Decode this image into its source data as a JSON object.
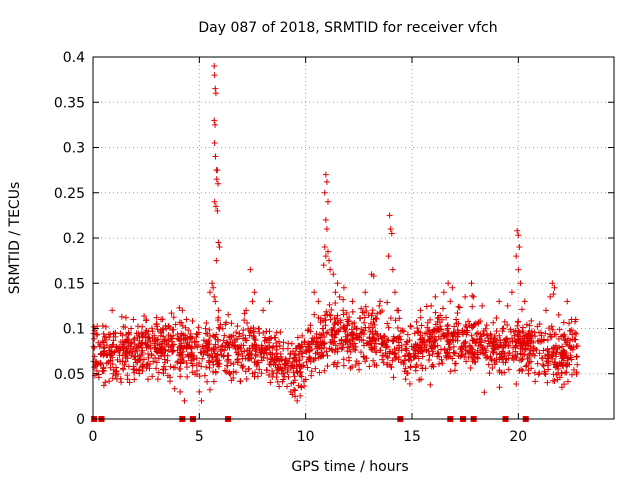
{
  "chart_data": {
    "type": "scatter",
    "title": "Day 087 of 2018, SRMTID for receiver vfch",
    "xlabel": "GPS time / hours",
    "ylabel": "SRMTID / TECUs",
    "xlim": [
      0,
      24.5
    ],
    "ylim": [
      0,
      0.4
    ],
    "x_ticks": [
      0,
      5,
      10,
      15,
      20
    ],
    "x_tick_labels": [
      "0",
      "5",
      "10",
      "15",
      "20"
    ],
    "y_ticks": [
      0,
      0.05,
      0.1,
      0.15,
      0.2,
      0.25,
      0.3,
      0.35,
      0.4
    ],
    "y_tick_labels": [
      "0",
      "0.05",
      "0.1",
      "0.15",
      "0.2",
      "0.25",
      "0.3",
      "0.35",
      "0.4"
    ],
    "grid": true,
    "marker": "+",
    "color": "#e00000",
    "series": [
      {
        "name": "SRMTID",
        "baseline_profile_x": [
          0,
          1,
          2,
          3,
          4,
          5,
          5.5,
          6,
          7,
          8,
          9,
          9.5,
          10,
          11,
          12,
          13,
          14,
          15,
          16,
          17,
          18,
          19,
          20,
          21,
          22,
          22.8
        ],
        "baseline_profile_y": [
          0.07,
          0.075,
          0.078,
          0.08,
          0.082,
          0.075,
          0.07,
          0.08,
          0.075,
          0.078,
          0.065,
          0.055,
          0.07,
          0.095,
          0.09,
          0.085,
          0.08,
          0.075,
          0.085,
          0.09,
          0.085,
          0.075,
          0.08,
          0.075,
          0.07,
          0.08
        ],
        "spread": 0.025,
        "points": [
          [
            0.2,
            0.093
          ],
          [
            0.9,
            0.12
          ],
          [
            1.9,
            0.11
          ],
          [
            3.2,
            0.11
          ],
          [
            4.2,
            0.12
          ],
          [
            4.4,
            0.11
          ],
          [
            4.3,
            0.02
          ],
          [
            4.1,
            0.03
          ],
          [
            5.0,
            0.03
          ],
          [
            5.1,
            0.02
          ],
          [
            5.5,
            0.14
          ],
          [
            5.7,
            0.39
          ],
          [
            5.72,
            0.38
          ],
          [
            5.75,
            0.365
          ],
          [
            5.78,
            0.36
          ],
          [
            5.7,
            0.33
          ],
          [
            5.74,
            0.325
          ],
          [
            5.72,
            0.305
          ],
          [
            5.76,
            0.29
          ],
          [
            5.8,
            0.275
          ],
          [
            5.85,
            0.275
          ],
          [
            5.82,
            0.265
          ],
          [
            5.88,
            0.26
          ],
          [
            5.72,
            0.24
          ],
          [
            5.78,
            0.235
          ],
          [
            5.85,
            0.23
          ],
          [
            5.9,
            0.195
          ],
          [
            5.95,
            0.19
          ],
          [
            5.8,
            0.175
          ],
          [
            5.6,
            0.15
          ],
          [
            5.65,
            0.145
          ],
          [
            5.7,
            0.135
          ],
          [
            5.75,
            0.13
          ],
          [
            5.9,
            0.12
          ],
          [
            7.4,
            0.165
          ],
          [
            7.6,
            0.14
          ],
          [
            7.5,
            0.13
          ],
          [
            8.3,
            0.13
          ],
          [
            8.0,
            0.12
          ],
          [
            7.2,
            0.12
          ],
          [
            9.5,
            0.025
          ],
          [
            9.3,
            0.03
          ],
          [
            9.8,
            0.035
          ],
          [
            9.6,
            0.02
          ],
          [
            10.4,
            0.14
          ],
          [
            10.6,
            0.13
          ],
          [
            10.95,
            0.27
          ],
          [
            11.0,
            0.262
          ],
          [
            10.9,
            0.25
          ],
          [
            11.05,
            0.24
          ],
          [
            10.95,
            0.22
          ],
          [
            11.0,
            0.21
          ],
          [
            10.9,
            0.19
          ],
          [
            11.05,
            0.185
          ],
          [
            10.95,
            0.18
          ],
          [
            11.1,
            0.175
          ],
          [
            10.85,
            0.17
          ],
          [
            11.15,
            0.165
          ],
          [
            11.3,
            0.16
          ],
          [
            11.5,
            0.15
          ],
          [
            11.8,
            0.145
          ],
          [
            11.4,
            0.14
          ],
          [
            11.6,
            0.135
          ],
          [
            12.2,
            0.13
          ],
          [
            13.1,
            0.16
          ],
          [
            13.2,
            0.158
          ],
          [
            12.8,
            0.14
          ],
          [
            13.5,
            0.13
          ],
          [
            13.95,
            0.225
          ],
          [
            14.0,
            0.21
          ],
          [
            14.05,
            0.205
          ],
          [
            13.9,
            0.18
          ],
          [
            14.1,
            0.165
          ],
          [
            14.2,
            0.14
          ],
          [
            14.3,
            0.12
          ],
          [
            15.4,
            0.12
          ],
          [
            15.9,
            0.125
          ],
          [
            16.1,
            0.135
          ],
          [
            16.5,
            0.14
          ],
          [
            16.7,
            0.15
          ],
          [
            16.9,
            0.145
          ],
          [
            16.8,
            0.13
          ],
          [
            17.5,
            0.135
          ],
          [
            17.8,
            0.15
          ],
          [
            17.9,
            0.135
          ],
          [
            18.3,
            0.125
          ],
          [
            19.1,
            0.13
          ],
          [
            19.5,
            0.125
          ],
          [
            19.7,
            0.14
          ],
          [
            19.95,
            0.208
          ],
          [
            20.0,
            0.203
          ],
          [
            20.05,
            0.19
          ],
          [
            19.9,
            0.18
          ],
          [
            20.0,
            0.165
          ],
          [
            20.1,
            0.15
          ],
          [
            20.3,
            0.13
          ],
          [
            21.3,
            0.12
          ],
          [
            21.5,
            0.135
          ],
          [
            21.6,
            0.15
          ],
          [
            21.7,
            0.145
          ],
          [
            21.65,
            0.138
          ],
          [
            22.3,
            0.13
          ],
          [
            22.5,
            0.11
          ],
          [
            22.7,
            0.11
          ],
          [
            21.9,
            0.115
          ]
        ]
      },
      {
        "name": "zero_markers",
        "x": [
          0.05,
          0.4,
          4.2,
          4.7,
          6.35,
          14.45,
          16.8,
          17.4,
          17.9,
          19.4,
          20.35
        ],
        "y": [
          0,
          0,
          0,
          0,
          0,
          0,
          0,
          0,
          0,
          0,
          0
        ]
      }
    ]
  }
}
